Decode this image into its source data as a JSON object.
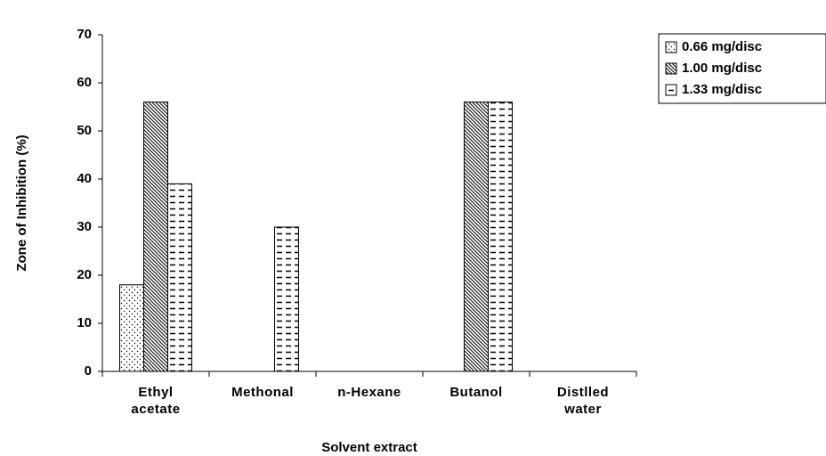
{
  "chart_data": {
    "type": "bar",
    "x_label": "Solvent extract",
    "y_label": "Zone of Inhibition (%)",
    "categories": [
      "Ethyl acetate",
      "Methonal",
      "n-Hexane",
      "Butanol",
      "Distlled water"
    ],
    "series": [
      {
        "name": "0.66 mg/disc",
        "color": "#000000",
        "pattern": "dots",
        "values": [
          18,
          0,
          0,
          0,
          0
        ]
      },
      {
        "name": "1.00 mg/disc",
        "color": "#000000",
        "pattern": "diagonal",
        "values": [
          56,
          0,
          0,
          56,
          0
        ]
      },
      {
        "name": "1.33 mg/disc",
        "color": "#000000",
        "pattern": "dashes",
        "values": [
          39,
          30,
          0,
          56,
          0
        ]
      }
    ],
    "ylim": [
      0,
      70
    ],
    "yticks": [
      0,
      10,
      20,
      30,
      40,
      50,
      60,
      70
    ],
    "grid": false,
    "legend": "upper right"
  }
}
